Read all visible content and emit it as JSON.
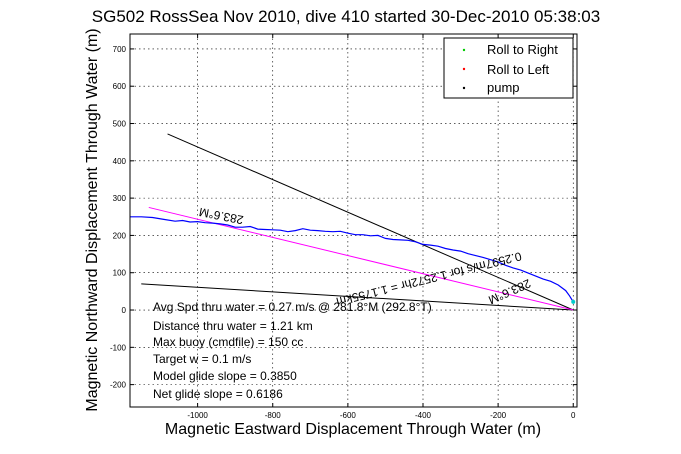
{
  "chart_data": {
    "type": "line",
    "title": "SG502 RossSea Nov 2010, dive 410 started 30-Dec-2010 05:38:03",
    "xlabel": "Magnetic Eastward Displacement Through Water (m)",
    "ylabel": "Magnetic Northward Displacement Through Water (m)",
    "xlim": [
      -1180,
      10
    ],
    "ylim": [
      -260,
      740
    ],
    "xticks": [
      -1000,
      -800,
      -600,
      -400,
      -200,
      0
    ],
    "yticks": [
      -200,
      -100,
      0,
      100,
      200,
      300,
      400,
      500,
      600,
      700
    ],
    "grid": true,
    "legend_position": "top-right",
    "series": [
      {
        "name": "Roll to Right",
        "color": "#00cc00",
        "marker": "dot",
        "x": [],
        "y": []
      },
      {
        "name": "Roll to Left",
        "color": "#ff0000",
        "marker": "dot",
        "x": [],
        "y": []
      },
      {
        "name": "pump",
        "color": "#000000",
        "marker": "dot",
        "x": [],
        "y": []
      }
    ],
    "track": {
      "color": "#0000ff",
      "x": [
        -1180,
        -1150,
        -1120,
        -1090,
        -1060,
        -1040,
        -1020,
        -1000,
        -980,
        -960,
        -940,
        -920,
        -900,
        -880,
        -860,
        -840,
        -820,
        -800,
        -780,
        -760,
        -740,
        -720,
        -700,
        -680,
        -660,
        -640,
        -620,
        -600,
        -580,
        -560,
        -540,
        -520,
        -500,
        -480,
        -460,
        -440,
        -420,
        -400,
        -380,
        -360,
        -340,
        -320,
        -300,
        -280,
        -260,
        -240,
        -220,
        -200,
        -180,
        -160,
        -140,
        -120,
        -100,
        -80,
        -60,
        -40,
        -20,
        -10,
        0
      ],
      "y": [
        250,
        250,
        248,
        243,
        238,
        240,
        236,
        237,
        234,
        233,
        231,
        228,
        222,
        222,
        224,
        217,
        216,
        215,
        214,
        210,
        213,
        218,
        214,
        213,
        211,
        210,
        211,
        206,
        202,
        202,
        199,
        200,
        192,
        189,
        188,
        187,
        183,
        176,
        174,
        171,
        165,
        161,
        158,
        151,
        146,
        141,
        135,
        129,
        120,
        113,
        107,
        99,
        91,
        83,
        77,
        67,
        52,
        38,
        22
      ]
    },
    "course_line": {
      "color": "#ff00ff",
      "x": [
        -1130,
        0
      ],
      "y": [
        275,
        0
      ]
    },
    "reference_lines": [
      {
        "color": "#000000",
        "x": [
          -1080,
          0
        ],
        "y": [
          472,
          0
        ]
      },
      {
        "color": "#000000",
        "x": [
          -1150,
          0
        ],
        "y": [
          70,
          0
        ]
      }
    ],
    "annotations": [
      {
        "text": "283.6°M",
        "angle": 191
      },
      {
        "text": "0.2597m/s for 1.2572hr = 1.1755km",
        "angle": 166
      },
      {
        "text": "283.6°M",
        "angle": 156
      }
    ],
    "summary_lines": [
      "Avg Spd thru water =  0.27 m/s @ 281.8°M (292.8°T)",
      "Distance thru water =  1.21 km",
      "Max buoy (cmdfile) = 150 cc",
      "Target w = 0.1 m/s",
      "Model glide slope = 0.3850",
      "Net glide slope = 0.6186"
    ]
  }
}
